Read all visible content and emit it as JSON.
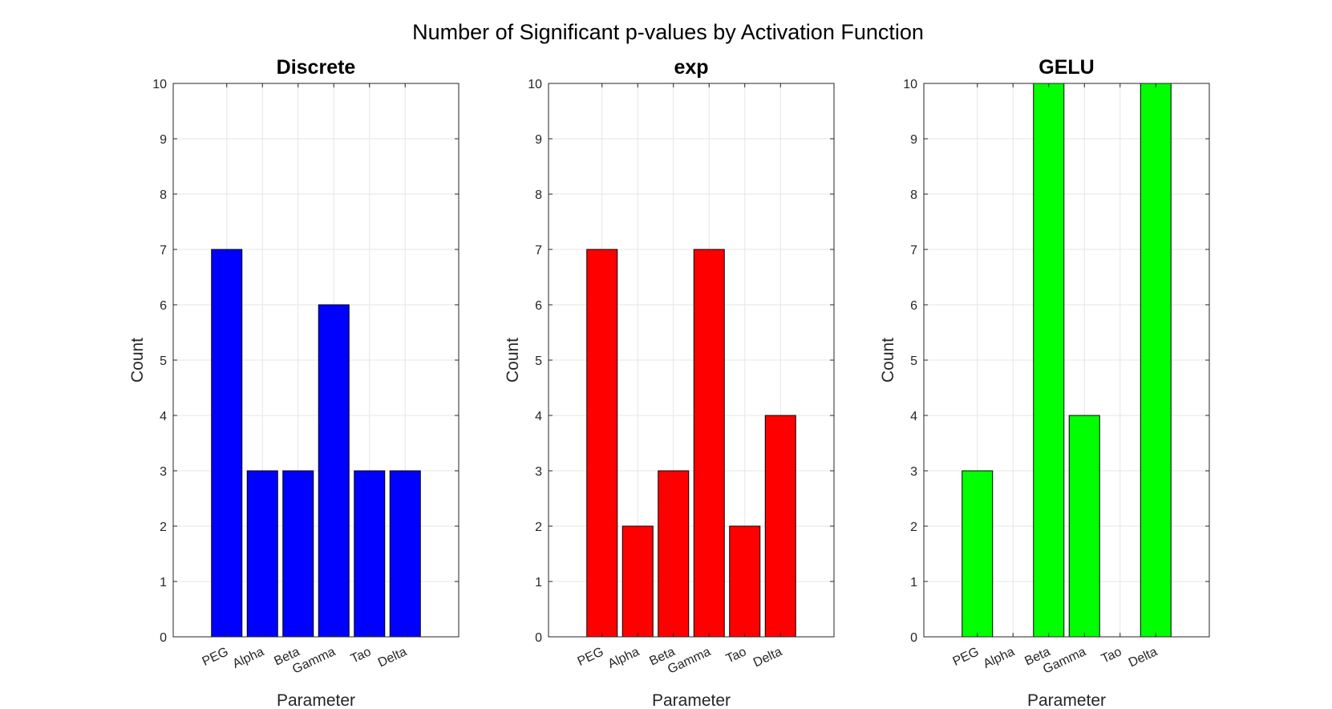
{
  "figure": {
    "title": "Number of Significant p-values by Activation Function"
  },
  "chart_data": [
    {
      "type": "bar",
      "title": "Discrete",
      "xlabel": "Parameter",
      "ylabel": "Count",
      "categories": [
        "PEG",
        "Alpha",
        "Beta",
        "Gamma",
        "Tao",
        "Delta"
      ],
      "values": [
        7,
        3,
        3,
        6,
        3,
        3
      ],
      "ylim": [
        0,
        10
      ],
      "yticks": [
        0,
        1,
        2,
        3,
        4,
        5,
        6,
        7,
        8,
        9,
        10
      ],
      "color": "#0000ff",
      "grid": true,
      "legend": "none"
    },
    {
      "type": "bar",
      "title": "exp",
      "xlabel": "Parameter",
      "ylabel": "Count",
      "categories": [
        "PEG",
        "Alpha",
        "Beta",
        "Gamma",
        "Tao",
        "Delta"
      ],
      "values": [
        7,
        2,
        3,
        7,
        2,
        4
      ],
      "ylim": [
        0,
        10
      ],
      "yticks": [
        0,
        1,
        2,
        3,
        4,
        5,
        6,
        7,
        8,
        9,
        10
      ],
      "color": "#ff0000",
      "grid": true,
      "legend": "none"
    },
    {
      "type": "bar",
      "title": "GELU",
      "xlabel": "Parameter",
      "ylabel": "Count",
      "categories": [
        "PEG",
        "Alpha",
        "Beta",
        "Gamma",
        "Tao",
        "Delta"
      ],
      "values": [
        3,
        0,
        10,
        4,
        0,
        10
      ],
      "ylim": [
        0,
        10
      ],
      "yticks": [
        0,
        1,
        2,
        3,
        4,
        5,
        6,
        7,
        8,
        9,
        10
      ],
      "color": "#00ff00",
      "grid": true,
      "legend": "none"
    }
  ]
}
